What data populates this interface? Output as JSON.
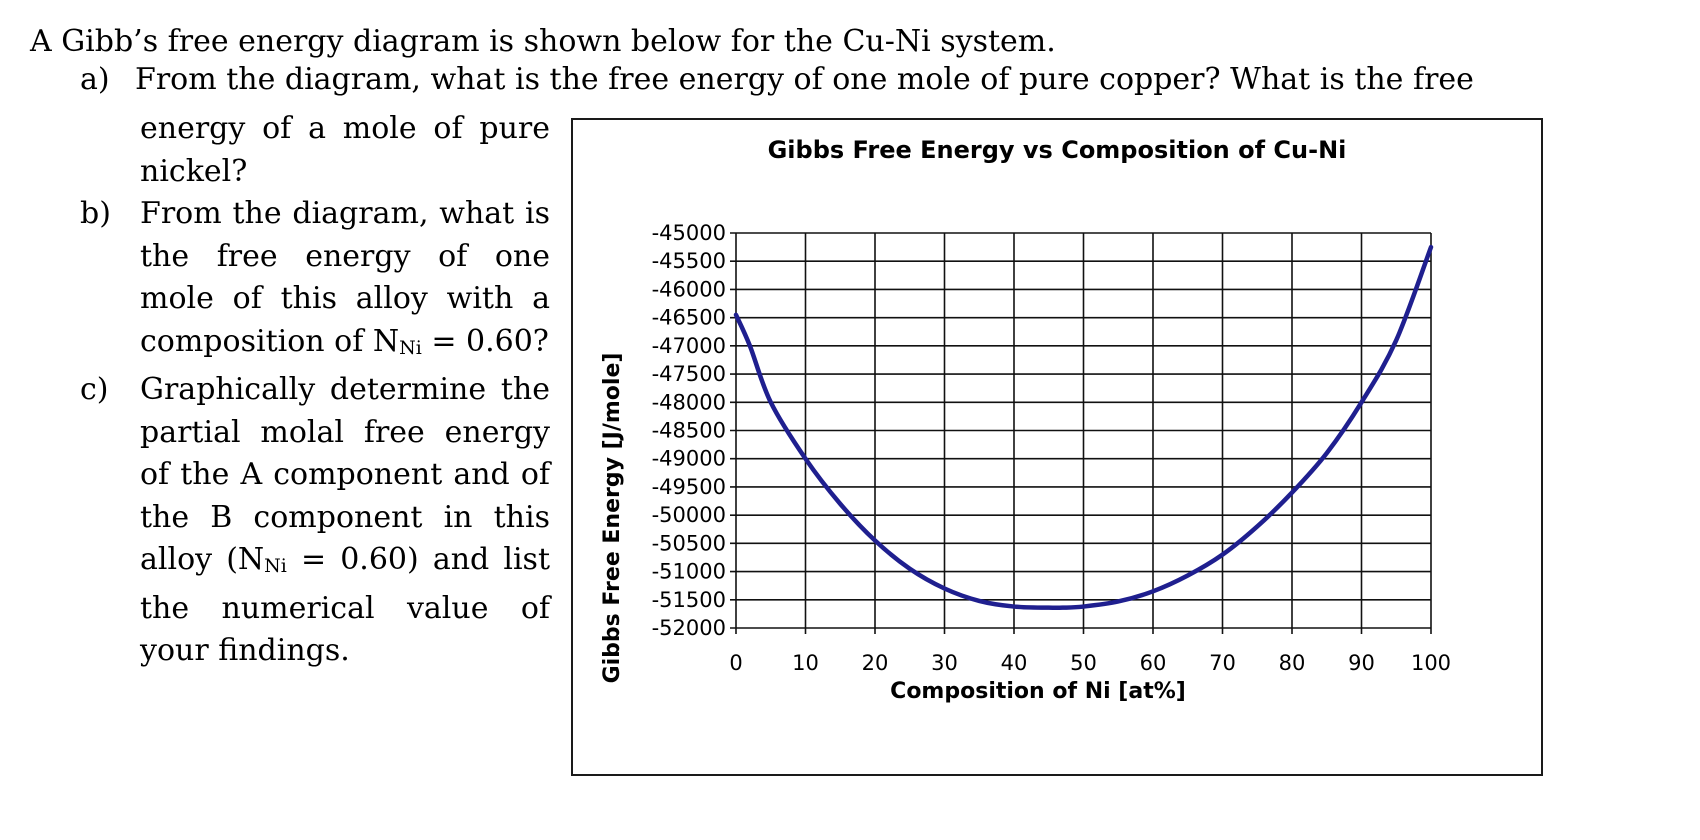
{
  "intro": "A Gibb’s free energy diagram is shown below for the Cu-Ni system.",
  "questions": [
    {
      "marker": "a)",
      "first_line": "From the diagram, what is the free energy of one mole of pure copper?  What is the free",
      "lines": [
        "energy of a mole of pure",
        "nickel?"
      ]
    },
    {
      "marker": "b)",
      "lines": [
        "From the diagram, what is",
        "the free energy of one",
        "mole of this alloy with a"
      ],
      "comp_prefix": "composition of N",
      "comp_sub": "Ni",
      "comp_suffix": " = 0.60?"
    },
    {
      "marker": "c)",
      "lines": [
        "Graphically determine the",
        "partial molal free energy",
        "of the A component and of",
        "the B component in this"
      ],
      "alloy_prefix": "alloy (N",
      "alloy_sub": "Ni",
      "alloy_suffix": " =  0.60) and list",
      "lines_after": [
        "the numerical value of",
        "your findings."
      ]
    }
  ],
  "chart_data": {
    "type": "line",
    "title": "Gibbs Free Energy vs Composition of Cu-Ni",
    "xlabel": "Composition of Ni [at%]",
    "ylabel": "Gibbs Free Energy [J/mole]",
    "xlim": [
      0,
      100
    ],
    "ylim": [
      -52000,
      -45000
    ],
    "x_ticks": [
      0,
      10,
      20,
      30,
      40,
      50,
      60,
      70,
      80,
      90,
      100
    ],
    "y_ticks": [
      -45000,
      -45500,
      -46000,
      -46500,
      -47000,
      -47500,
      -48000,
      -48500,
      -49000,
      -49500,
      -50000,
      -50500,
      -51000,
      -51500,
      -52000
    ],
    "grid": true,
    "series": [
      {
        "color": "#1f1f8f",
        "x": [
          0,
          2,
          5,
          10,
          15,
          20,
          25,
          30,
          35,
          40,
          45,
          47,
          50,
          55,
          60,
          65,
          70,
          75,
          80,
          85,
          90,
          95,
          100
        ],
        "y": [
          -46450,
          -47000,
          -48000,
          -49000,
          -49800,
          -50450,
          -50950,
          -51300,
          -51520,
          -51620,
          -51640,
          -51640,
          -51620,
          -51530,
          -51350,
          -51070,
          -50700,
          -50200,
          -49600,
          -48900,
          -48000,
          -46900,
          -45250
        ]
      }
    ]
  }
}
